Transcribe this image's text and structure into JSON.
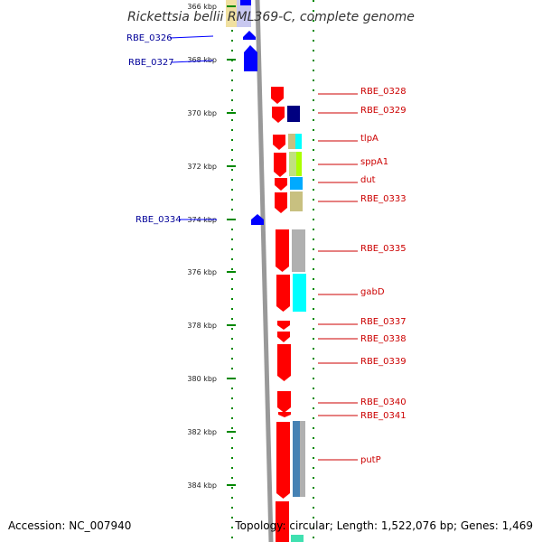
{
  "title": "Rickettsia bellii RML369-C, complete genome",
  "footer": {
    "accession": "Accession: NC_007940",
    "topology": "Topology: circular; Length: 1,522,076 bp; Genes: 1,469"
  },
  "ticks": [
    {
      "label": "366 kbp"
    },
    {
      "label": "368 kbp"
    },
    {
      "label": "370 kbp"
    },
    {
      "label": "372 kbp"
    },
    {
      "label": "374 kbp"
    },
    {
      "label": "376 kbp"
    },
    {
      "label": "378 kbp"
    },
    {
      "label": "380 kbp"
    },
    {
      "label": "382 kbp"
    },
    {
      "label": "384 kbp"
    }
  ],
  "reverse_genes": [
    {
      "name": "RBE_0326"
    },
    {
      "name": "RBE_0327"
    },
    {
      "name": "RBE_0334"
    }
  ],
  "forward_genes": [
    {
      "name": "RBE_0328"
    },
    {
      "name": "RBE_0329"
    },
    {
      "name": "tlpA"
    },
    {
      "name": "sppA1"
    },
    {
      "name": "dut"
    },
    {
      "name": "RBE_0333"
    },
    {
      "name": "RBE_0335"
    },
    {
      "name": "gabD"
    },
    {
      "name": "RBE_0337"
    },
    {
      "name": "RBE_0338"
    },
    {
      "name": "RBE_0339"
    },
    {
      "name": "RBE_0340"
    },
    {
      "name": "RBE_0341"
    },
    {
      "name": "putP"
    }
  ],
  "colors": {
    "forward": "#ff0000",
    "reverse": "#0000ff",
    "backbone": "#999999",
    "ruler": "#008800",
    "forward_label": "#cc0000",
    "reverse_label": "#000099"
  }
}
